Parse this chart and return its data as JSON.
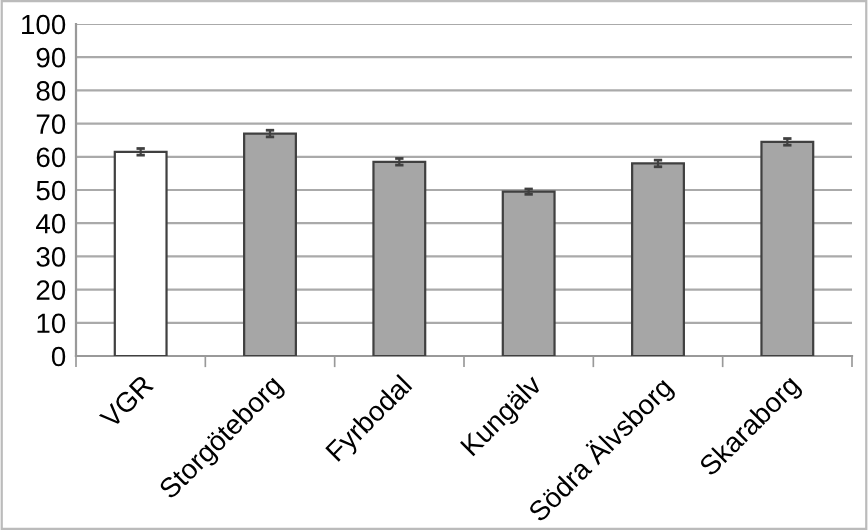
{
  "chart_data": {
    "type": "bar",
    "categories": [
      "VGR",
      "Storgöteborg",
      "Fyrbodal",
      "Kungälv",
      "Södra Älvsborg",
      "Skaraborg"
    ],
    "values": [
      61.5,
      67,
      58.5,
      49.5,
      58,
      64.5
    ],
    "errors": [
      1,
      1,
      1,
      0.8,
      1,
      1
    ],
    "colors": [
      "#ffffff",
      "#a6a6a6",
      "#a6a6a6",
      "#a6a6a6",
      "#a6a6a6",
      "#a6a6a6"
    ],
    "ylim": [
      0,
      100
    ],
    "yticks": [
      0,
      10,
      20,
      30,
      40,
      50,
      60,
      70,
      80,
      90,
      100
    ],
    "grid": "y"
  }
}
